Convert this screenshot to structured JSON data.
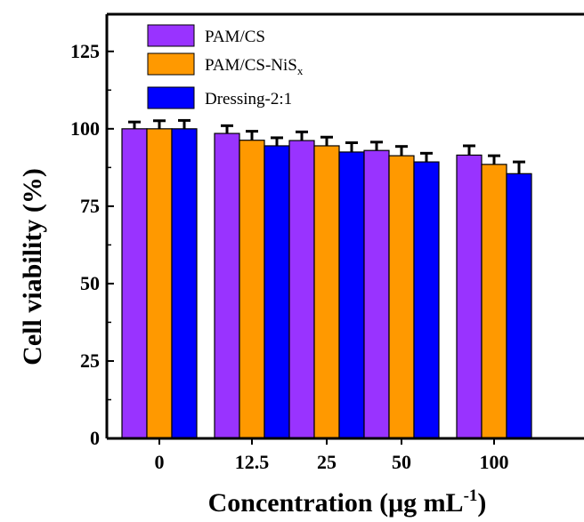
{
  "chart_data": {
    "type": "bar",
    "categories": [
      "0",
      "12.5",
      "25",
      "50",
      "100"
    ],
    "xlabel": "Concentration (μg mL⁻¹)",
    "xlabel_main": "Concentration (μg mL",
    "xlabel_exp": "-1",
    "xlabel_tail": ")",
    "ylabel": "Cell viability (%)",
    "ylim": [
      0,
      137
    ],
    "yticks": [
      0,
      25,
      50,
      75,
      100,
      125
    ],
    "legend_position": "top-left",
    "series": [
      {
        "name": "PAM/CS",
        "name_main": "PAM/CS",
        "name_sub": "",
        "color": "#9933ff",
        "values": [
          100,
          98.5,
          96.2,
          93,
          91.5
        ],
        "errors": [
          2.2,
          2.5,
          2.8,
          2.7,
          3.0
        ]
      },
      {
        "name": "PAM/CS-NiSx",
        "name_main": "PAM/CS-NiS",
        "name_sub": "x",
        "color": "#ff9900",
        "values": [
          100,
          96.3,
          94.5,
          91.3,
          88.5
        ],
        "errors": [
          2.6,
          2.9,
          2.8,
          3.0,
          2.8
        ]
      },
      {
        "name": "Dressing-2:1",
        "name_main": "Dressing-2:1",
        "name_sub": "",
        "color": "#0000ff",
        "values": [
          100,
          94.5,
          92.5,
          89.3,
          85.5
        ],
        "errors": [
          2.7,
          2.6,
          3.0,
          2.8,
          3.8
        ]
      }
    ],
    "bar_outline": "#000000",
    "error_color": "#000000"
  }
}
